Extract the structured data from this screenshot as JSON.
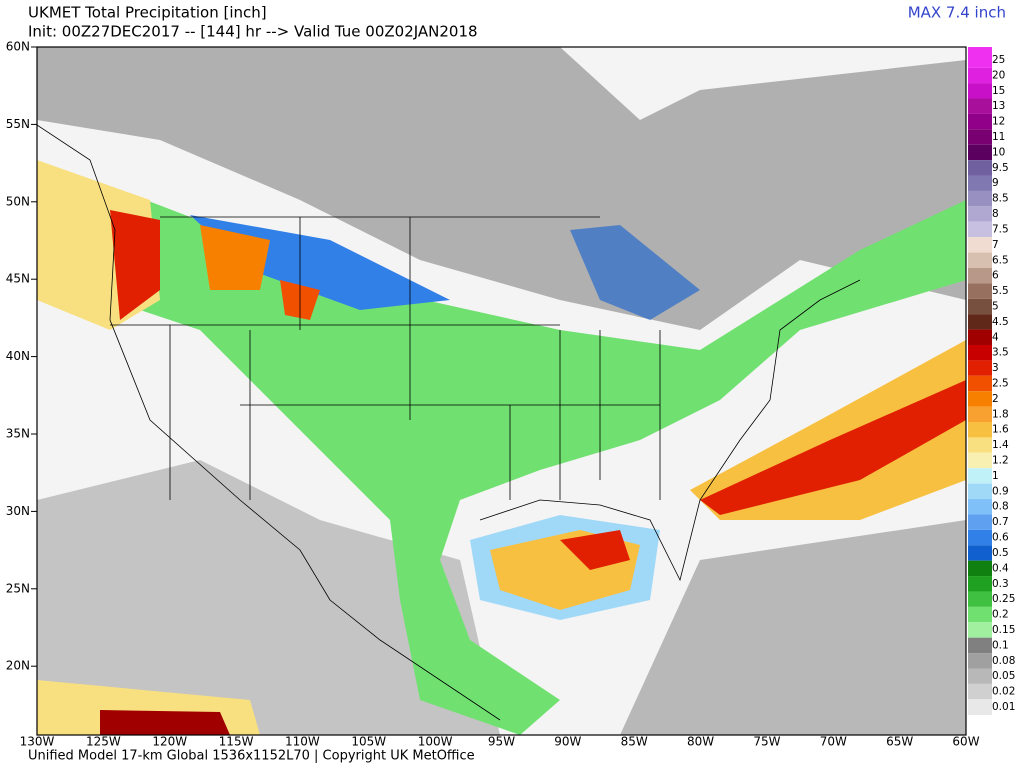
{
  "header": {
    "title": "UKMET Total Precipitation [inch]",
    "subtitle": "Init: 00Z27DEC2017 -- [144] hr --> Valid Tue 00Z02JAN2018",
    "max": "MAX 7.4 inch"
  },
  "footer": "Unified Model 17-km Global 1536x1152L70 | Copyright UK MetOffice",
  "map": {
    "lat_labels": [
      "60N",
      "55N",
      "50N",
      "45N",
      "40N",
      "35N",
      "30N",
      "25N",
      "20N"
    ],
    "lon_labels": [
      "130W",
      "125W",
      "120W",
      "115W",
      "110W",
      "105W",
      "100W",
      "95W",
      "90W",
      "85W",
      "80W",
      "75W",
      "70W",
      "65W",
      "60W"
    ]
  },
  "legend": {
    "levels": [
      {
        "label": "25",
        "color": "#f030f0"
      },
      {
        "label": "20",
        "color": "#e020e0"
      },
      {
        "label": "15",
        "color": "#c810c8"
      },
      {
        "label": "13",
        "color": "#a8109c"
      },
      {
        "label": "12",
        "color": "#900088"
      },
      {
        "label": "11",
        "color": "#780070"
      },
      {
        "label": "10",
        "color": "#5c0060"
      },
      {
        "label": "9.5",
        "color": "#7060a0"
      },
      {
        "label": "9",
        "color": "#8078b0"
      },
      {
        "label": "8.5",
        "color": "#9890c0"
      },
      {
        "label": "8",
        "color": "#b0a8d0"
      },
      {
        "label": "7.5",
        "color": "#c8c0e0"
      },
      {
        "label": "7",
        "color": "#f0dcd0"
      },
      {
        "label": "6.5",
        "color": "#d8c0b0"
      },
      {
        "label": "6",
        "color": "#b89888"
      },
      {
        "label": "5.5",
        "color": "#987060"
      },
      {
        "label": "5",
        "color": "#785040"
      },
      {
        "label": "4.5",
        "color": "#602818"
      },
      {
        "label": "4",
        "color": "#a00000"
      },
      {
        "label": "3.5",
        "color": "#c80000"
      },
      {
        "label": "3",
        "color": "#e02000"
      },
      {
        "label": "2.5",
        "color": "#f05000"
      },
      {
        "label": "2",
        "color": "#f88000"
      },
      {
        "label": "1.8",
        "color": "#f8a030"
      },
      {
        "label": "1.6",
        "color": "#f8c040"
      },
      {
        "label": "1.4",
        "color": "#f8e080"
      },
      {
        "label": "1.2",
        "color": "#f8f0b0"
      },
      {
        "label": "1",
        "color": "#c0f0f8"
      },
      {
        "label": "0.9",
        "color": "#a0d8f8"
      },
      {
        "label": "0.8",
        "color": "#80c0f8"
      },
      {
        "label": "0.7",
        "color": "#60a0f0"
      },
      {
        "label": "0.6",
        "color": "#3080e8"
      },
      {
        "label": "0.5",
        "color": "#1060d0"
      },
      {
        "label": "0.4",
        "color": "#108010"
      },
      {
        "label": "0.3",
        "color": "#20a020"
      },
      {
        "label": "0.25",
        "color": "#40c040"
      },
      {
        "label": "0.2",
        "color": "#70e070"
      },
      {
        "label": "0.15",
        "color": "#a0f0a0"
      },
      {
        "label": "0.1",
        "color": "#808080"
      },
      {
        "label": "0.08",
        "color": "#a0a0a0"
      },
      {
        "label": "0.05",
        "color": "#b8b8b8"
      },
      {
        "label": "0.02",
        "color": "#d0d0d0"
      },
      {
        "label": "0.01",
        "color": "#e8e8e8"
      }
    ]
  }
}
